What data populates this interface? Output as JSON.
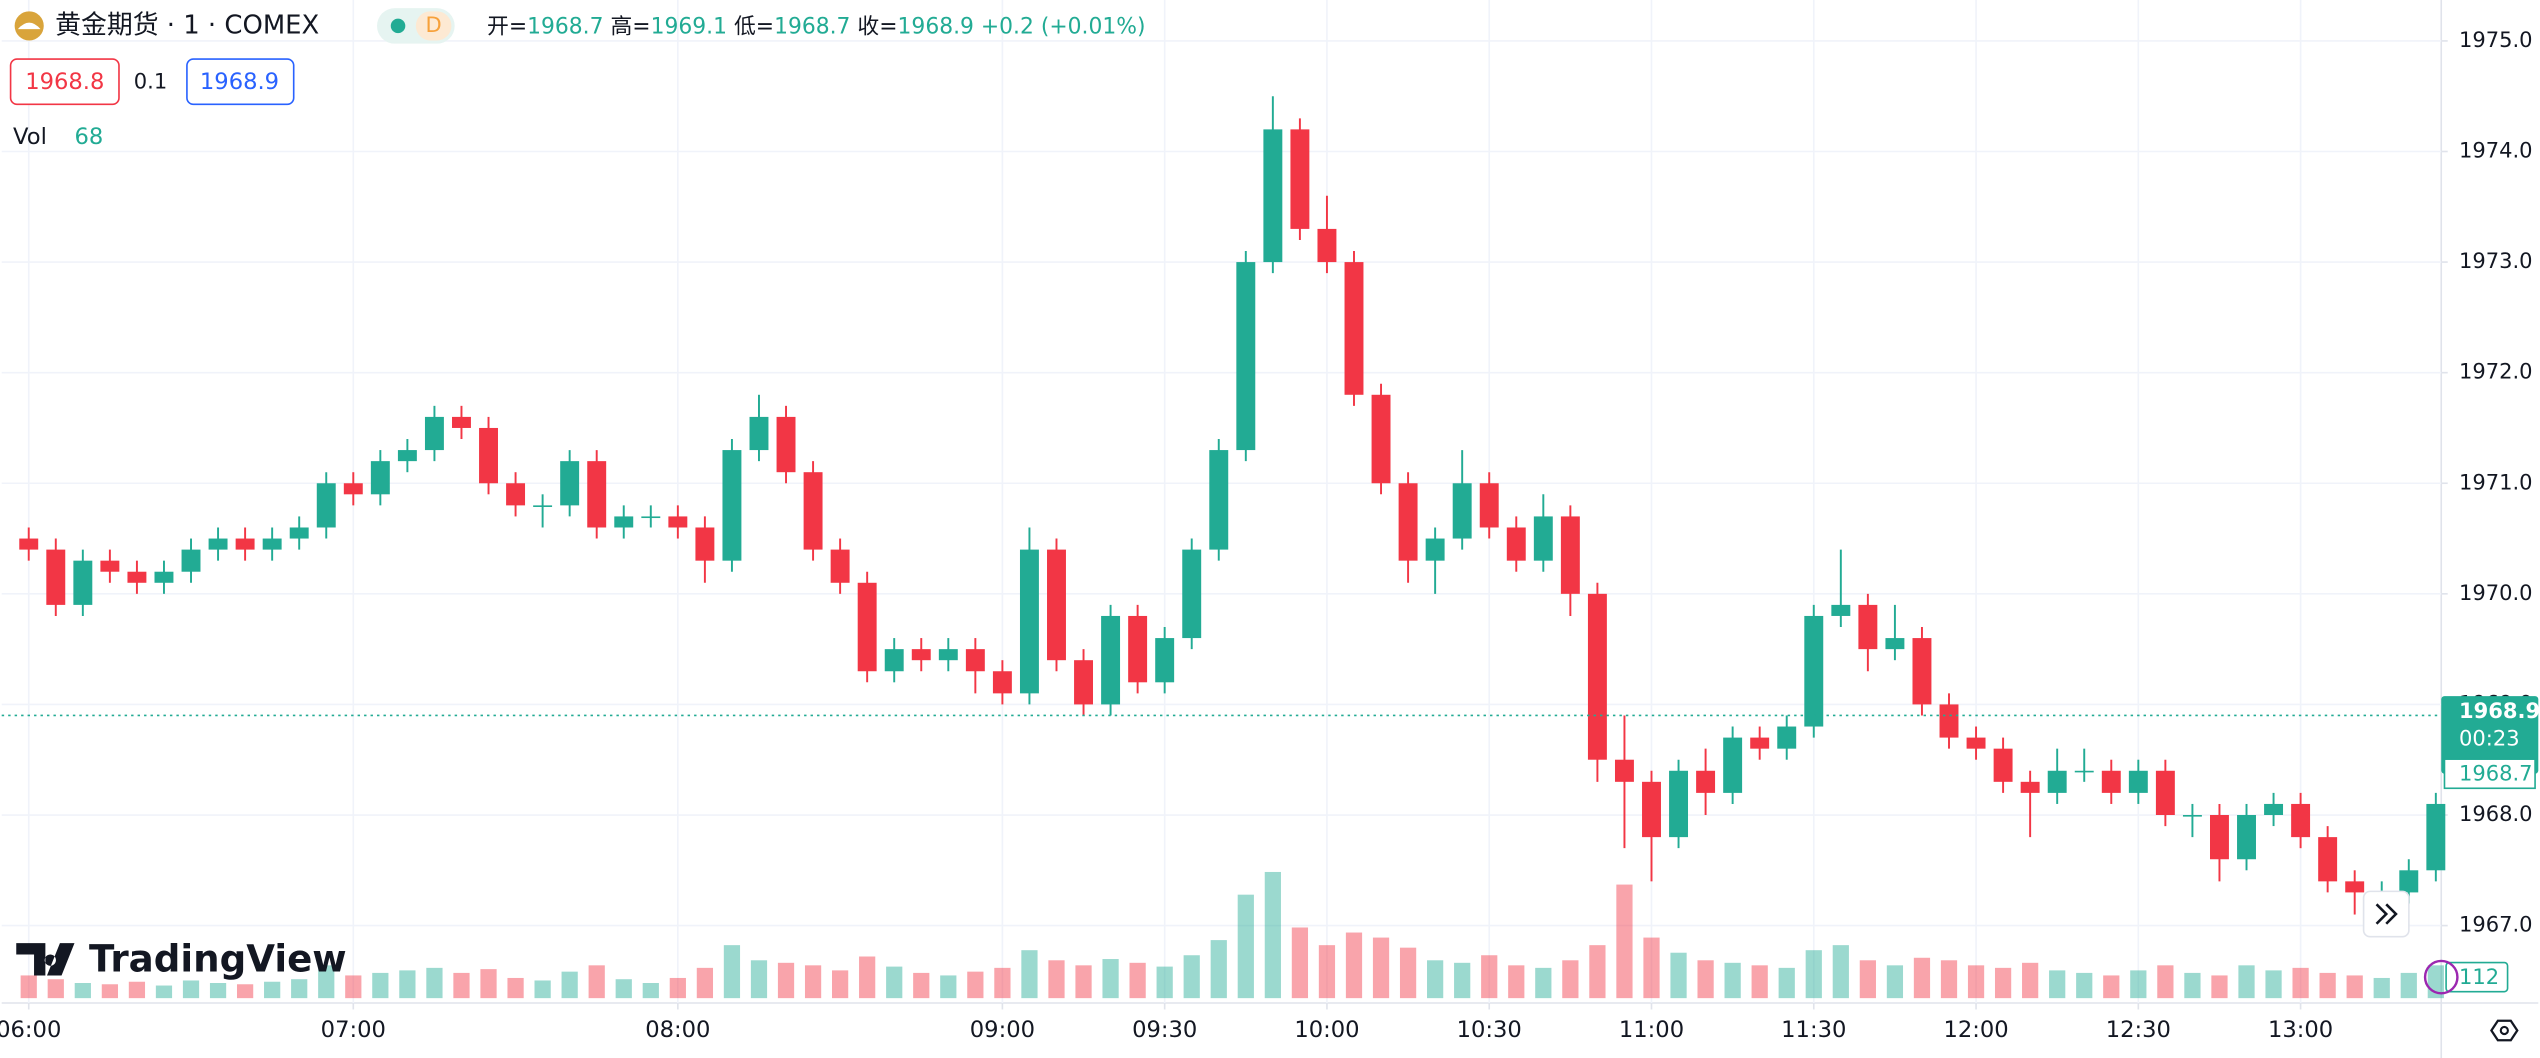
{
  "header": {
    "symbol": "黄金期货 · 1 · COMEX",
    "interval": "D",
    "ohlc": [
      {
        "label": "开=",
        "value": 1968.7
      },
      {
        "label": "高=",
        "value": 1969.1
      },
      {
        "label": "低=",
        "value": 1968.7
      },
      {
        "label": "收=",
        "value": 1968.9
      }
    ],
    "change": "+0.2 (+0.01%)",
    "sell": 1968.8,
    "spread": 0.1,
    "buy": 1968.9,
    "volume_title": "Vol",
    "volume_value": 68,
    "brand": "TradingView"
  },
  "chart_data": {
    "type": "candlestick",
    "up_color": "#22ab94",
    "down_color": "#f23645",
    "grid": true,
    "x": [
      "06:00",
      "06:05",
      "06:10",
      "06:15",
      "06:20",
      "06:25",
      "06:30",
      "06:35",
      "06:40",
      "06:45",
      "06:50",
      "06:55",
      "07:00",
      "07:05",
      "07:10",
      "07:15",
      "07:20",
      "07:25",
      "07:30",
      "07:35",
      "07:40",
      "07:45",
      "07:50",
      "07:55",
      "08:00",
      "08:05",
      "08:10",
      "08:15",
      "08:20",
      "08:25",
      "08:30",
      "08:35",
      "08:40",
      "08:45",
      "08:50",
      "08:55",
      "09:00",
      "09:05",
      "09:10",
      "09:15",
      "09:20",
      "09:25",
      "09:30",
      "09:35",
      "09:40",
      "09:45",
      "09:50",
      "09:55",
      "10:00",
      "10:05",
      "10:10",
      "10:15",
      "10:20",
      "10:25",
      "10:30",
      "10:35",
      "10:40",
      "10:45",
      "10:50",
      "10:55",
      "11:00",
      "11:05",
      "11:10",
      "11:15",
      "11:20",
      "11:25",
      "11:30",
      "11:35",
      "11:40",
      "11:45",
      "11:50",
      "11:55",
      "12:00",
      "12:05",
      "12:10",
      "12:15",
      "12:20",
      "12:25",
      "12:30",
      "12:35",
      "12:40",
      "12:45",
      "12:50",
      "12:55",
      "13:00",
      "13:05",
      "13:10",
      "13:15",
      "13:20",
      "13:25"
    ],
    "open": [
      1970.5,
      1970.4,
      1969.9,
      1970.3,
      1970.2,
      1970.1,
      1970.2,
      1970.4,
      1970.5,
      1970.4,
      1970.5,
      1970.6,
      1971.0,
      1970.9,
      1971.2,
      1971.3,
      1971.6,
      1971.5,
      1971.0,
      1970.8,
      1970.8,
      1971.2,
      1970.6,
      1970.7,
      1970.7,
      1970.6,
      1970.3,
      1971.3,
      1971.6,
      1971.1,
      1970.4,
      1970.1,
      1969.3,
      1969.5,
      1969.4,
      1969.5,
      1969.3,
      1969.1,
      1970.4,
      1969.4,
      1969.0,
      1969.8,
      1969.2,
      1969.6,
      1970.4,
      1971.3,
      1973.0,
      1974.2,
      1973.3,
      1973.0,
      1971.8,
      1971.0,
      1970.3,
      1970.5,
      1971.0,
      1970.6,
      1970.3,
      1970.7,
      1970.0,
      1968.5,
      1968.3,
      1967.8,
      1968.4,
      1968.2,
      1968.7,
      1968.6,
      1968.8,
      1969.8,
      1969.9,
      1969.5,
      1969.6,
      1969.0,
      1968.7,
      1968.6,
      1968.3,
      1968.2,
      1968.4,
      1968.4,
      1968.2,
      1968.4,
      1968.0,
      1968.0,
      1967.6,
      1968.0,
      1968.1,
      1967.8,
      1967.4,
      1967.3,
      1967.3,
      1967.5
    ],
    "high": [
      1970.6,
      1970.5,
      1970.4,
      1970.4,
      1970.3,
      1970.3,
      1970.5,
      1970.6,
      1970.6,
      1970.6,
      1970.7,
      1971.1,
      1971.1,
      1971.3,
      1971.4,
      1971.7,
      1971.7,
      1971.6,
      1971.1,
      1970.9,
      1971.3,
      1971.3,
      1970.8,
      1970.8,
      1970.8,
      1970.7,
      1971.4,
      1971.8,
      1971.7,
      1971.2,
      1970.5,
      1970.2,
      1969.6,
      1969.6,
      1969.6,
      1969.6,
      1969.4,
      1970.6,
      1970.5,
      1969.5,
      1969.9,
      1969.9,
      1969.7,
      1970.5,
      1971.4,
      1973.1,
      1974.5,
      1974.3,
      1973.6,
      1973.1,
      1971.9,
      1971.1,
      1970.6,
      1971.3,
      1971.1,
      1970.7,
      1970.9,
      1970.8,
      1970.1,
      1968.9,
      1968.4,
      1968.5,
      1968.6,
      1968.8,
      1968.8,
      1968.9,
      1969.9,
      1970.4,
      1970.0,
      1969.9,
      1969.7,
      1969.1,
      1968.8,
      1968.7,
      1968.4,
      1968.6,
      1968.6,
      1968.5,
      1968.5,
      1968.5,
      1968.1,
      1968.1,
      1968.1,
      1968.2,
      1968.2,
      1967.9,
      1967.5,
      1967.4,
      1967.6,
      1968.2
    ],
    "low": [
      1970.3,
      1969.8,
      1969.8,
      1970.1,
      1970.0,
      1970.0,
      1970.1,
      1970.3,
      1970.3,
      1970.3,
      1970.4,
      1970.5,
      1970.8,
      1970.8,
      1971.1,
      1971.2,
      1971.4,
      1970.9,
      1970.7,
      1970.6,
      1970.7,
      1970.5,
      1970.5,
      1970.6,
      1970.5,
      1970.1,
      1970.2,
      1971.2,
      1971.0,
      1970.3,
      1970.0,
      1969.2,
      1969.2,
      1969.3,
      1969.3,
      1969.1,
      1969.0,
      1969.0,
      1969.3,
      1968.9,
      1968.9,
      1969.1,
      1969.1,
      1969.5,
      1970.3,
      1971.2,
      1972.9,
      1973.2,
      1972.9,
      1971.7,
      1970.9,
      1970.1,
      1970.0,
      1970.4,
      1970.5,
      1970.2,
      1970.2,
      1969.8,
      1968.3,
      1967.7,
      1967.4,
      1967.7,
      1968.0,
      1968.1,
      1968.5,
      1968.5,
      1968.7,
      1969.7,
      1969.3,
      1969.4,
      1968.9,
      1968.6,
      1968.5,
      1968.2,
      1967.8,
      1968.1,
      1968.3,
      1968.1,
      1968.1,
      1967.9,
      1967.8,
      1967.4,
      1967.5,
      1967.9,
      1967.7,
      1967.3,
      1967.1,
      1967.1,
      1967.2,
      1967.4
    ],
    "close": [
      1970.4,
      1969.9,
      1970.3,
      1970.2,
      1970.1,
      1970.2,
      1970.4,
      1970.5,
      1970.4,
      1970.5,
      1970.6,
      1971.0,
      1970.9,
      1971.2,
      1971.3,
      1971.6,
      1971.5,
      1971.0,
      1970.8,
      1970.8,
      1971.2,
      1970.6,
      1970.7,
      1970.7,
      1970.6,
      1970.3,
      1971.3,
      1971.6,
      1971.1,
      1970.4,
      1970.1,
      1969.3,
      1969.5,
      1969.4,
      1969.5,
      1969.3,
      1969.1,
      1970.4,
      1969.4,
      1969.0,
      1969.8,
      1969.2,
      1969.6,
      1970.4,
      1971.3,
      1973.0,
      1974.2,
      1973.3,
      1973.0,
      1971.8,
      1971.0,
      1970.3,
      1970.5,
      1971.0,
      1970.6,
      1970.3,
      1970.7,
      1970.0,
      1968.5,
      1968.3,
      1967.8,
      1968.4,
      1968.2,
      1968.7,
      1968.6,
      1968.8,
      1969.8,
      1969.9,
      1969.5,
      1969.6,
      1969.0,
      1968.7,
      1968.6,
      1968.3,
      1968.2,
      1968.4,
      1968.4,
      1968.2,
      1968.4,
      1968.0,
      1968.0,
      1967.6,
      1968.0,
      1968.1,
      1967.8,
      1967.4,
      1967.3,
      1967.3,
      1967.5,
      1968.1
    ],
    "volume": [
      180,
      150,
      120,
      110,
      130,
      100,
      140,
      120,
      110,
      130,
      150,
      260,
      180,
      200,
      220,
      240,
      200,
      230,
      160,
      140,
      210,
      260,
      150,
      120,
      160,
      240,
      420,
      300,
      280,
      260,
      220,
      330,
      250,
      200,
      180,
      210,
      240,
      380,
      300,
      260,
      310,
      280,
      250,
      340,
      460,
      820,
      1000,
      560,
      420,
      520,
      480,
      400,
      300,
      280,
      340,
      260,
      240,
      300,
      420,
      900,
      480,
      360,
      300,
      280,
      260,
      240,
      380,
      420,
      300,
      260,
      320,
      300,
      260,
      240,
      280,
      220,
      200,
      180,
      220,
      260,
      200,
      180,
      260,
      220,
      240,
      200,
      180,
      160,
      200,
      260
    ],
    "xlim": [
      "05:55",
      "13:26"
    ],
    "xticks": [
      "06:00",
      "07:00",
      "08:00",
      "09:00",
      "09:30",
      "10:00",
      "10:30",
      "11:00",
      "11:30",
      "12:00",
      "12:30",
      "13:00"
    ],
    "ylim": [
      1966.3,
      1975.37
    ],
    "yticks": [
      {
        "value": 1967,
        "label": "1967.0"
      },
      {
        "value": 1968,
        "label": "1968.0"
      },
      {
        "value": 1969,
        "label": "1969.0"
      },
      {
        "value": 1970,
        "label": "1970.0"
      },
      {
        "value": 1971,
        "label": "1971.0"
      },
      {
        "value": 1972,
        "label": "1972.0"
      },
      {
        "value": 1973,
        "label": "1973.0"
      },
      {
        "value": 1974,
        "label": "1974.0"
      },
      {
        "value": 1975,
        "label": "1975.0"
      }
    ],
    "last_price": 1968.9,
    "countdown": "00:23",
    "reference_price": 1968.7,
    "volume_axis_label": 112
  }
}
